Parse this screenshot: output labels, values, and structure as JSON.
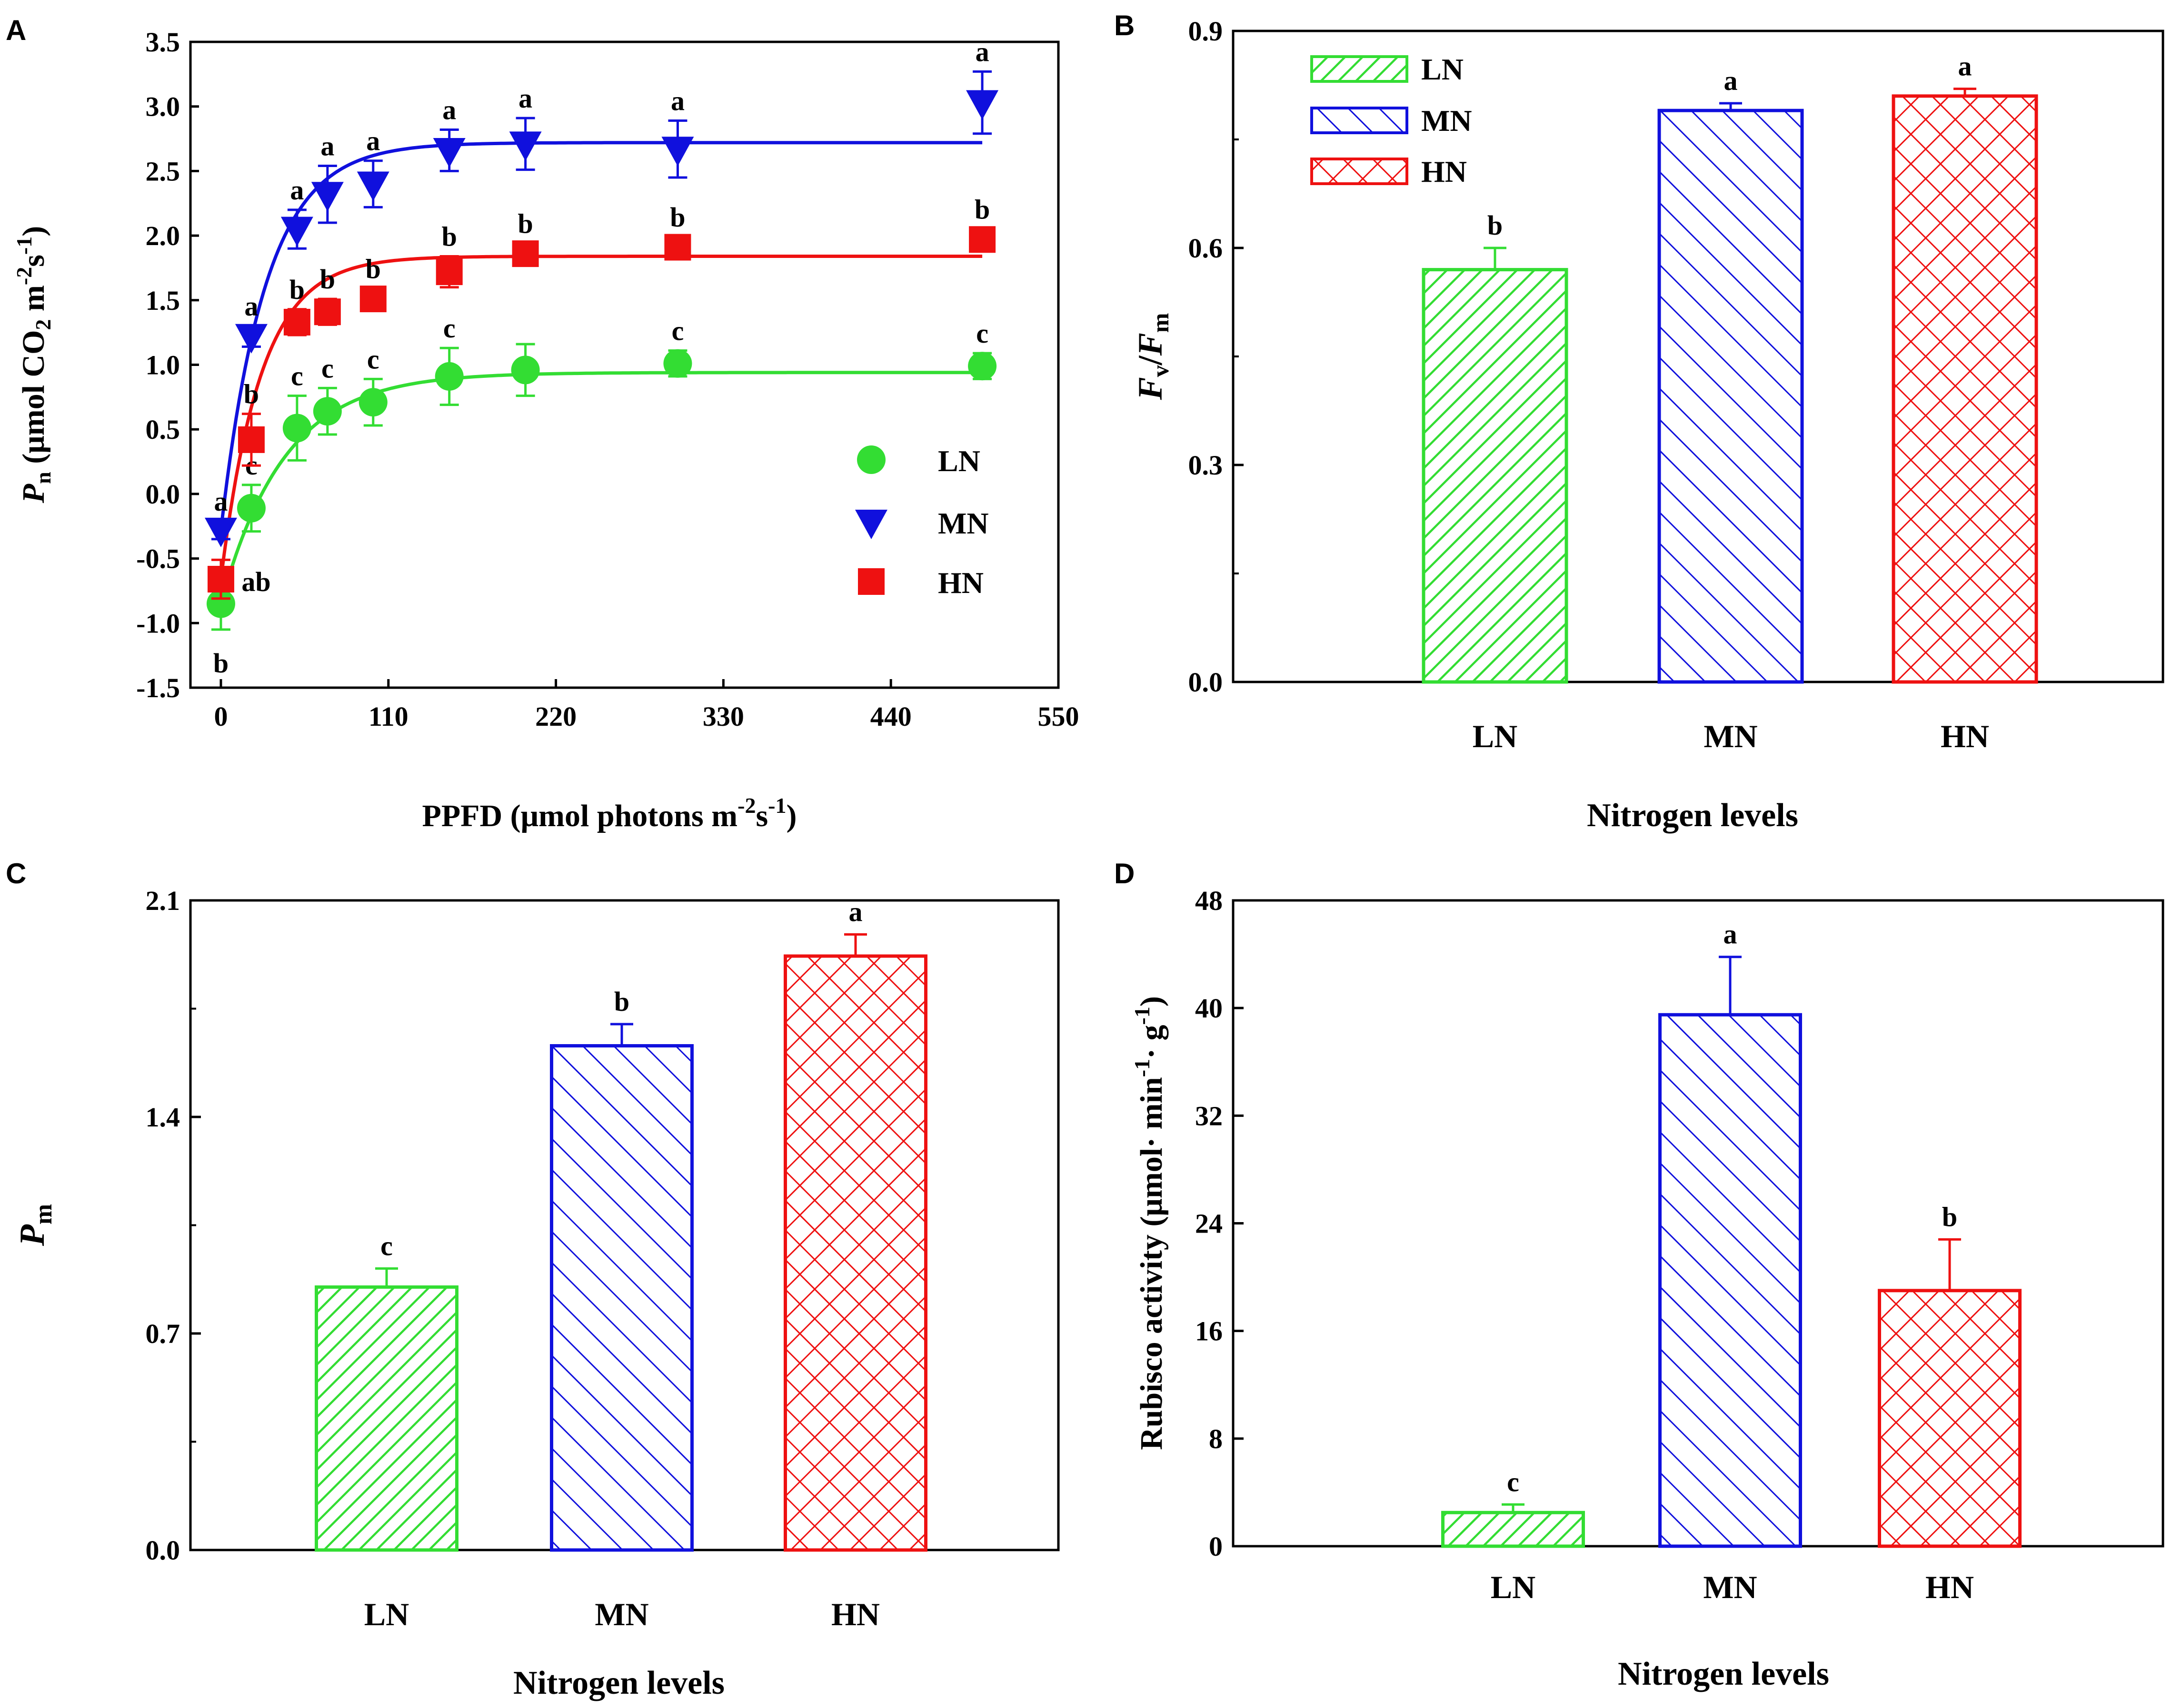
{
  "colors": {
    "LN": "#33dd33",
    "MN": "#1010dd",
    "HN": "#ee1111",
    "axis": "#000000"
  },
  "chart_data": [
    {
      "panel": "A",
      "type": "scatter",
      "title": "",
      "ylabel": "P",
      "ylabel_sub": "n",
      "ylabel_unit": " (μmol CO",
      "ylabel_unit_sub": "2",
      "ylabel_unit_rest": " m",
      "ylabel_sup1": "-2",
      "ylabel_mid": "s",
      "ylabel_sup2": "-1",
      "ylabel_end": ")",
      "xlabel": "PPFD (μmol photons m",
      "xlabel_sup1": "-2",
      "xlabel_mid": "s",
      "xlabel_sup2": "-1",
      "xlabel_end": ")",
      "xlim": [
        -20,
        550
      ],
      "ylim": [
        -1.5,
        3.5
      ],
      "xticks": [
        "0",
        "110",
        "220",
        "330",
        "440",
        "550"
      ],
      "xtick_values": [
        0,
        110,
        220,
        330,
        440,
        550
      ],
      "yticks": [
        "-1.5",
        "-1.0",
        "-0.5",
        "0.0",
        "0.5",
        "1.0",
        "1.5",
        "2.0",
        "2.5",
        "3.0",
        "3.5"
      ],
      "ytick_values": [
        -1.5,
        -1.0,
        -0.5,
        0.0,
        0.5,
        1.0,
        1.5,
        2.0,
        2.5,
        3.0,
        3.5
      ],
      "x": [
        0,
        20,
        50,
        70,
        100,
        150,
        200,
        300,
        500
      ],
      "series": [
        {
          "name": "LN",
          "marker": "circle",
          "values": [
            -0.85,
            -0.11,
            0.51,
            0.64,
            0.71,
            0.91,
            0.96,
            1.01,
            0.99
          ],
          "errors": [
            0.2,
            0.18,
            0.25,
            0.18,
            0.18,
            0.22,
            0.2,
            0.1,
            0.1
          ],
          "letters": [
            "b",
            "c",
            "c",
            "c",
            "c",
            "c",
            "",
            "c",
            "c"
          ],
          "letter_pos": [
            "below",
            "above",
            "above",
            "above",
            "above",
            "above",
            "above",
            "above",
            "above"
          ],
          "fit": {
            "pmax": 1.79,
            "k": 0.024,
            "rd": -0.85
          }
        },
        {
          "name": "MN",
          "marker": "triangle-down",
          "values": [
            -0.28,
            1.22,
            2.05,
            2.32,
            2.4,
            2.66,
            2.71,
            2.67,
            3.03
          ],
          "errors": [
            0.07,
            0.08,
            0.15,
            0.22,
            0.18,
            0.16,
            0.2,
            0.22,
            0.24
          ],
          "letters": [
            "a",
            "a",
            "a",
            "a",
            "a",
            "a",
            "a",
            "a",
            "a"
          ],
          "letter_pos": [
            "above",
            "above",
            "above",
            "above",
            "above",
            "above",
            "above",
            "above",
            "above"
          ],
          "fit": {
            "pmax": 3.0,
            "k": 0.034,
            "rd": -0.28
          }
        },
        {
          "name": "HN",
          "marker": "square",
          "values": [
            -0.66,
            0.42,
            1.33,
            1.41,
            1.51,
            1.72,
            1.86,
            1.91,
            1.97
          ],
          "errors": [
            0.15,
            0.2,
            0.1,
            0.1,
            0.08,
            0.12,
            0.08,
            0.08,
            0.08
          ],
          "letters": [
            "ab",
            "b",
            "b",
            "b",
            "b",
            "b",
            "b",
            "b",
            "b"
          ],
          "letter_pos": [
            "right",
            "above",
            "above",
            "above",
            "above",
            "above",
            "above",
            "above",
            "above"
          ],
          "fit": {
            "pmax": 2.5,
            "k": 0.038,
            "rd": -0.66
          }
        }
      ],
      "legend": [
        "LN",
        "MN",
        "HN"
      ],
      "legend_position": "center-right"
    },
    {
      "panel": "B",
      "type": "bar",
      "ylabel": "F",
      "ylabel_sub": "v",
      "ylabel_slash": "/",
      "ylabel2": "F",
      "ylabel2_sub": "m",
      "xlabel": "Nitrogen levels",
      "categories": [
        "LN",
        "MN",
        "HN"
      ],
      "values": [
        0.57,
        0.79,
        0.81
      ],
      "errors": [
        0.03,
        0.01,
        0.01
      ],
      "letters": [
        "b",
        "a",
        "a"
      ],
      "ylim": [
        0,
        0.9
      ],
      "yticks": [
        "0.0",
        "0.3",
        "0.6",
        "0.9"
      ],
      "ytick_values": [
        0,
        0.3,
        0.6,
        0.9
      ],
      "legend": [
        "LN",
        "MN",
        "HN"
      ],
      "legend_position": "top-left"
    },
    {
      "panel": "C",
      "type": "bar",
      "ylabel": "P",
      "ylabel_sub": "m",
      "xlabel": "Nitrogen levels",
      "categories": [
        "LN",
        "MN",
        "HN"
      ],
      "values": [
        0.85,
        1.63,
        1.92
      ],
      "errors": [
        0.06,
        0.07,
        0.07
      ],
      "letters": [
        "c",
        "b",
        "a"
      ],
      "ylim": [
        0,
        2.1
      ],
      "yticks": [
        "0.0",
        "0.7",
        "1.4",
        "2.1"
      ],
      "ytick_values": [
        0,
        0.7,
        1.4,
        2.1
      ]
    },
    {
      "panel": "D",
      "type": "bar",
      "ylabel": "Rubisco activity (μmol· min",
      "ylabel_sup1": "-1",
      "ylabel_mid": "· g",
      "ylabel_sup2": "-1",
      "ylabel_end": ")",
      "xlabel": "Nitrogen levels",
      "categories": [
        "LN",
        "MN",
        "HN"
      ],
      "values": [
        2.5,
        39.5,
        19.0
      ],
      "errors": [
        0.6,
        4.3,
        3.8
      ],
      "letters": [
        "c",
        "a",
        "b"
      ],
      "ylim": [
        0,
        48
      ],
      "yticks": [
        "0",
        "8",
        "16",
        "24",
        "32",
        "40",
        "48"
      ],
      "ytick_values": [
        0,
        8,
        16,
        24,
        32,
        40,
        48
      ]
    }
  ]
}
